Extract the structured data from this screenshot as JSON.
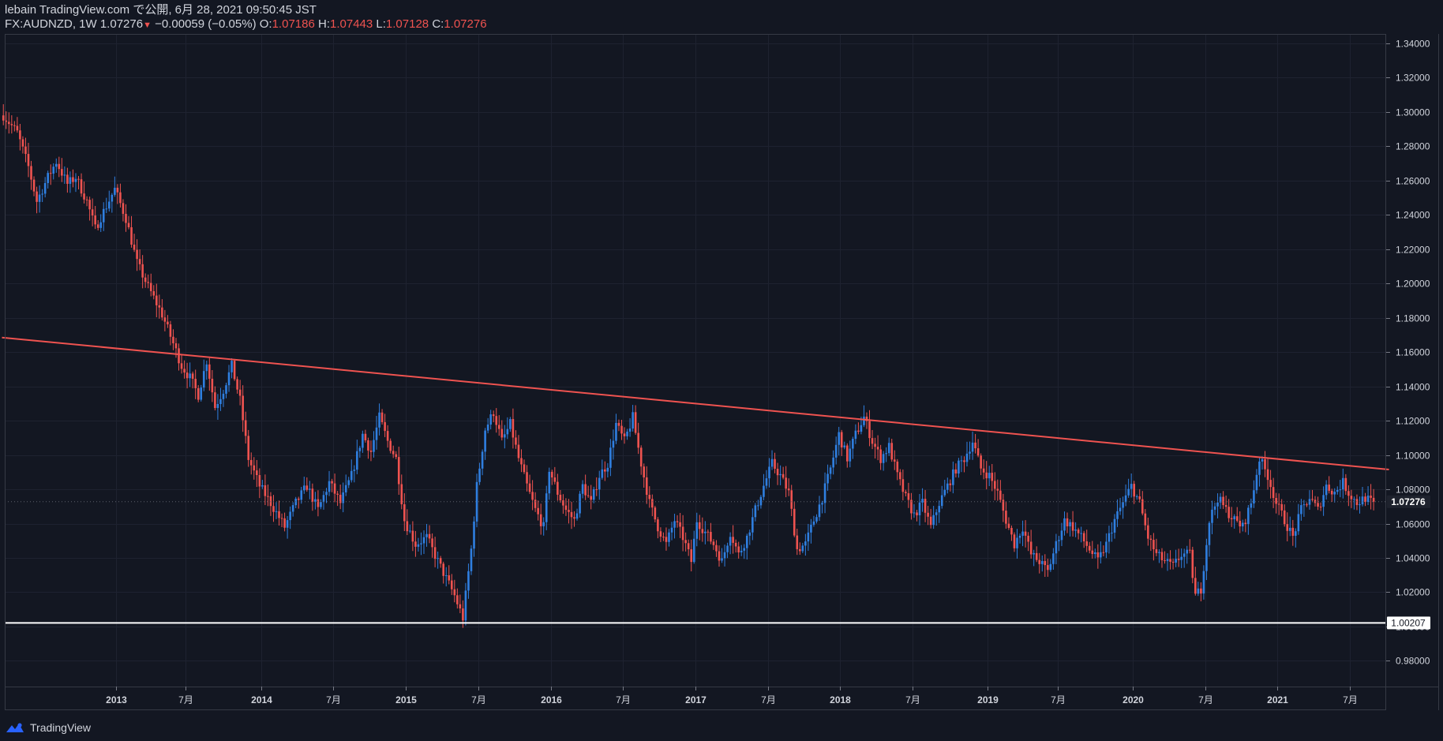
{
  "header": {
    "publisher": "lebain TradingView.com で公開, 6月 28, 2021 09:50:45 JST",
    "symbol": "FX:AUDNZD, 1W",
    "last": "1.07276",
    "change": "−0.00059 (−0.05%)",
    "open_label": "O:",
    "open": "1.07186",
    "high_label": "H:",
    "high": "1.07443",
    "low_label": "L:",
    "low": "1.07128",
    "close_label": "C:",
    "close": "1.07276"
  },
  "footer": {
    "brand": "TradingView"
  },
  "colors": {
    "bg": "#131722",
    "up": "#2f7fe0",
    "down": "#ef5350",
    "grid": "#1e2230",
    "axis": "#d1d4dc",
    "trend": "#ef5350",
    "support": "#ffffff"
  },
  "chart_data": {
    "type": "candlestick",
    "symbol": "FX:AUDNZD",
    "interval": "1W",
    "y_axis": {
      "ylim": [
        0.965,
        1.3455
      ],
      "ticks": [
        "1.34000",
        "1.32000",
        "1.30000",
        "1.28000",
        "1.26000",
        "1.24000",
        "1.22000",
        "1.20000",
        "1.18000",
        "1.16000",
        "1.14000",
        "1.12000",
        "1.10000",
        "1.08000",
        "1.06000",
        "1.04000",
        "1.02000",
        "1.00000",
        "0.98000"
      ],
      "tick_values": [
        1.34,
        1.32,
        1.3,
        1.28,
        1.26,
        1.24,
        1.22,
        1.2,
        1.18,
        1.16,
        1.14,
        1.12,
        1.1,
        1.08,
        1.06,
        1.04,
        1.02,
        1.0,
        0.98
      ]
    },
    "x_axis": {
      "xlim": [
        "2012-04-02",
        "2021-10-04"
      ],
      "ticks": [
        {
          "date": "2013-01-07",
          "label": "2013",
          "bold": true
        },
        {
          "date": "2013-07-01",
          "label": "7月",
          "bold": false
        },
        {
          "date": "2014-01-06",
          "label": "2014",
          "bold": true
        },
        {
          "date": "2014-07-07",
          "label": "7月",
          "bold": false
        },
        {
          "date": "2015-01-05",
          "label": "2015",
          "bold": true
        },
        {
          "date": "2015-07-06",
          "label": "7月",
          "bold": false
        },
        {
          "date": "2016-01-04",
          "label": "2016",
          "bold": true
        },
        {
          "date": "2016-07-04",
          "label": "7月",
          "bold": false
        },
        {
          "date": "2017-01-02",
          "label": "2017",
          "bold": true
        },
        {
          "date": "2017-07-03",
          "label": "7月",
          "bold": false
        },
        {
          "date": "2018-01-01",
          "label": "2018",
          "bold": true
        },
        {
          "date": "2018-07-02",
          "label": "7月",
          "bold": false
        },
        {
          "date": "2019-01-07",
          "label": "2019",
          "bold": true
        },
        {
          "date": "2019-07-01",
          "label": "7月",
          "bold": false
        },
        {
          "date": "2020-01-06",
          "label": "2020",
          "bold": true
        },
        {
          "date": "2020-07-06",
          "label": "7月",
          "bold": false
        },
        {
          "date": "2021-01-04",
          "label": "2021",
          "bold": true
        },
        {
          "date": "2021-07-05",
          "label": "7月",
          "bold": false
        }
      ]
    },
    "price_path": [
      [
        "2012-04-02",
        1.298
      ],
      [
        "2012-05-07",
        1.288
      ],
      [
        "2012-06-04",
        1.268
      ],
      [
        "2012-06-25",
        1.248
      ],
      [
        "2012-07-23",
        1.262
      ],
      [
        "2012-08-13",
        1.271
      ],
      [
        "2012-09-10",
        1.258
      ],
      [
        "2012-10-01",
        1.262
      ],
      [
        "2012-10-29",
        1.248
      ],
      [
        "2012-11-19",
        1.232
      ],
      [
        "2012-12-10",
        1.242
      ],
      [
        "2013-01-07",
        1.255
      ],
      [
        "2013-02-04",
        1.238
      ],
      [
        "2013-03-04",
        1.212
      ],
      [
        "2013-04-01",
        1.198
      ],
      [
        "2013-05-06",
        1.182
      ],
      [
        "2013-06-03",
        1.165
      ],
      [
        "2013-06-24",
        1.152
      ],
      [
        "2013-07-15",
        1.145
      ],
      [
        "2013-08-05",
        1.135
      ],
      [
        "2013-08-26",
        1.155
      ],
      [
        "2013-09-16",
        1.128
      ],
      [
        "2013-10-07",
        1.138
      ],
      [
        "2013-10-28",
        1.152
      ],
      [
        "2013-11-18",
        1.132
      ],
      [
        "2013-12-09",
        1.098
      ],
      [
        "2014-01-06",
        1.082
      ],
      [
        "2014-02-03",
        1.072
      ],
      [
        "2014-03-10",
        1.058
      ],
      [
        "2014-04-07",
        1.072
      ],
      [
        "2014-05-05",
        1.082
      ],
      [
        "2014-06-02",
        1.068
      ],
      [
        "2014-06-30",
        1.084
      ],
      [
        "2014-07-28",
        1.072
      ],
      [
        "2014-08-25",
        1.088
      ],
      [
        "2014-09-22",
        1.112
      ],
      [
        "2014-10-13",
        1.102
      ],
      [
        "2014-11-03",
        1.122
      ],
      [
        "2014-11-24",
        1.108
      ],
      [
        "2014-12-15",
        1.098
      ],
      [
        "2015-01-05",
        1.062
      ],
      [
        "2015-02-02",
        1.048
      ],
      [
        "2015-03-02",
        1.052
      ],
      [
        "2015-03-30",
        1.038
      ],
      [
        "2015-04-20",
        1.028
      ],
      [
        "2015-05-11",
        1.018
      ],
      [
        "2015-06-01",
        1.005
      ],
      [
        "2015-06-22",
        1.045
      ],
      [
        "2015-07-06",
        1.082
      ],
      [
        "2015-07-27",
        1.115
      ],
      [
        "2015-08-17",
        1.125
      ],
      [
        "2015-09-07",
        1.108
      ],
      [
        "2015-09-28",
        1.118
      ],
      [
        "2015-10-19",
        1.098
      ],
      [
        "2015-11-09",
        1.082
      ],
      [
        "2015-11-30",
        1.068
      ],
      [
        "2015-12-21",
        1.058
      ],
      [
        "2016-01-04",
        1.092
      ],
      [
        "2016-01-25",
        1.078
      ],
      [
        "2016-02-15",
        1.068
      ],
      [
        "2016-03-07",
        1.062
      ],
      [
        "2016-03-28",
        1.082
      ],
      [
        "2016-04-18",
        1.072
      ],
      [
        "2016-05-09",
        1.088
      ],
      [
        "2016-05-30",
        1.095
      ],
      [
        "2016-06-20",
        1.118
      ],
      [
        "2016-07-11",
        1.108
      ],
      [
        "2016-08-01",
        1.122
      ],
      [
        "2016-08-22",
        1.095
      ],
      [
        "2016-09-12",
        1.072
      ],
      [
        "2016-10-03",
        1.058
      ],
      [
        "2016-10-24",
        1.048
      ],
      [
        "2016-11-14",
        1.062
      ],
      [
        "2016-12-05",
        1.052
      ],
      [
        "2016-12-26",
        1.038
      ],
      [
        "2017-01-09",
        1.062
      ],
      [
        "2017-01-30",
        1.055
      ],
      [
        "2017-02-20",
        1.048
      ],
      [
        "2017-03-13",
        1.038
      ],
      [
        "2017-04-03",
        1.055
      ],
      [
        "2017-04-24",
        1.042
      ],
      [
        "2017-05-15",
        1.052
      ],
      [
        "2017-06-05",
        1.068
      ],
      [
        "2017-06-26",
        1.082
      ],
      [
        "2017-07-17",
        1.095
      ],
      [
        "2017-08-07",
        1.088
      ],
      [
        "2017-08-28",
        1.078
      ],
      [
        "2017-09-18",
        1.045
      ],
      [
        "2017-10-09",
        1.048
      ],
      [
        "2017-10-30",
        1.062
      ],
      [
        "2017-11-20",
        1.075
      ],
      [
        "2017-12-11",
        1.092
      ],
      [
        "2018-01-01",
        1.112
      ],
      [
        "2018-01-22",
        1.098
      ],
      [
        "2018-02-12",
        1.112
      ],
      [
        "2018-03-05",
        1.122
      ],
      [
        "2018-03-26",
        1.108
      ],
      [
        "2018-04-16",
        1.098
      ],
      [
        "2018-05-07",
        1.105
      ],
      [
        "2018-05-28",
        1.088
      ],
      [
        "2018-06-18",
        1.075
      ],
      [
        "2018-07-09",
        1.065
      ],
      [
        "2018-07-30",
        1.072
      ],
      [
        "2018-08-20",
        1.058
      ],
      [
        "2018-09-10",
        1.072
      ],
      [
        "2018-10-01",
        1.082
      ],
      [
        "2018-10-22",
        1.092
      ],
      [
        "2018-11-12",
        1.098
      ],
      [
        "2018-12-03",
        1.108
      ],
      [
        "2018-12-24",
        1.092
      ],
      [
        "2019-01-14",
        1.088
      ],
      [
        "2019-02-04",
        1.078
      ],
      [
        "2019-02-25",
        1.062
      ],
      [
        "2019-03-18",
        1.048
      ],
      [
        "2019-04-08",
        1.058
      ],
      [
        "2019-04-29",
        1.042
      ],
      [
        "2019-05-20",
        1.038
      ],
      [
        "2019-06-10",
        1.032
      ],
      [
        "2019-07-01",
        1.048
      ],
      [
        "2019-07-22",
        1.062
      ],
      [
        "2019-08-12",
        1.058
      ],
      [
        "2019-09-02",
        1.052
      ],
      [
        "2019-09-23",
        1.045
      ],
      [
        "2019-10-14",
        1.038
      ],
      [
        "2019-11-04",
        1.048
      ],
      [
        "2019-11-25",
        1.062
      ],
      [
        "2019-12-16",
        1.072
      ],
      [
        "2020-01-06",
        1.082
      ],
      [
        "2020-01-27",
        1.072
      ],
      [
        "2020-02-17",
        1.052
      ],
      [
        "2020-03-09",
        1.042
      ],
      [
        "2020-03-30",
        1.038
      ],
      [
        "2020-04-20",
        1.035
      ],
      [
        "2020-05-11",
        1.042
      ],
      [
        "2020-06-01",
        1.042
      ],
      [
        "2020-06-15",
        1.018
      ],
      [
        "2020-06-29",
        1.022
      ],
      [
        "2020-07-20",
        1.062
      ],
      [
        "2020-08-10",
        1.075
      ],
      [
        "2020-08-31",
        1.068
      ],
      [
        "2020-09-21",
        1.062
      ],
      [
        "2020-10-12",
        1.058
      ],
      [
        "2020-11-02",
        1.072
      ],
      [
        "2020-11-23",
        1.098
      ],
      [
        "2020-12-14",
        1.088
      ],
      [
        "2021-01-04",
        1.072
      ],
      [
        "2021-01-25",
        1.062
      ],
      [
        "2021-02-15",
        1.052
      ],
      [
        "2021-03-08",
        1.068
      ],
      [
        "2021-03-29",
        1.075
      ],
      [
        "2021-04-19",
        1.068
      ],
      [
        "2021-05-10",
        1.082
      ],
      [
        "2021-05-31",
        1.078
      ],
      [
        "2021-06-21",
        1.084
      ],
      [
        "2021-07-05",
        1.078
      ],
      [
        "2021-07-26",
        1.072
      ],
      [
        "2021-08-16",
        1.075
      ],
      [
        "2021-08-30",
        1.07276
      ]
    ],
    "trend_line": {
      "start": [
        "2012-03-26",
        1.1685
      ],
      "end": [
        "2021-10-11",
        1.0915
      ],
      "color": "#ef5350"
    },
    "horizontal_line": {
      "value": 1.00207,
      "label": "1.00207",
      "color": "#ffffff"
    },
    "current_price": {
      "value": 1.07276,
      "label": "1.07276"
    }
  }
}
